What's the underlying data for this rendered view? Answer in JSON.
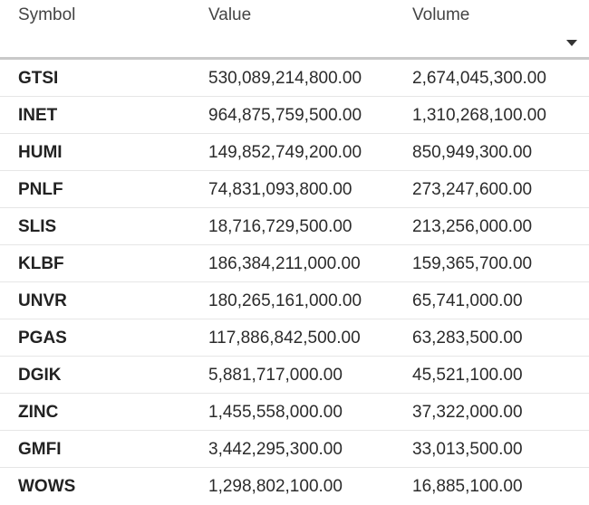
{
  "table": {
    "headers": {
      "symbol": "Symbol",
      "value": "Value",
      "volume": "Volume"
    },
    "sort_icon": "chevron-down-icon",
    "rows": [
      {
        "symbol": "GTSI",
        "value": "530,089,214,800.00",
        "volume": "2,674,045,300.00"
      },
      {
        "symbol": "INET",
        "value": "964,875,759,500.00",
        "volume": "1,310,268,100.00"
      },
      {
        "symbol": "HUMI",
        "value": "149,852,749,200.00",
        "volume": "850,949,300.00"
      },
      {
        "symbol": "PNLF",
        "value": "74,831,093,800.00",
        "volume": "273,247,600.00"
      },
      {
        "symbol": "SLIS",
        "value": "18,716,729,500.00",
        "volume": "213,256,000.00"
      },
      {
        "symbol": "KLBF",
        "value": "186,384,211,000.00",
        "volume": "159,365,700.00"
      },
      {
        "symbol": "UNVR",
        "value": "180,265,161,000.00",
        "volume": "65,741,000.00"
      },
      {
        "symbol": "PGAS",
        "value": "117,886,842,500.00",
        "volume": "63,283,500.00"
      },
      {
        "symbol": "DGIK",
        "value": "5,881,717,000.00",
        "volume": "45,521,100.00"
      },
      {
        "symbol": "ZINC",
        "value": "1,455,558,000.00",
        "volume": "37,322,000.00"
      },
      {
        "symbol": "GMFI",
        "value": "3,442,295,300.00",
        "volume": "33,013,500.00"
      },
      {
        "symbol": "WOWS",
        "value": "1,298,802,100.00",
        "volume": "16,885,100.00"
      }
    ]
  },
  "colors": {
    "header_border": "#c9c9c9",
    "row_border": "#e6e6e6",
    "text": "#2b2b2b"
  }
}
